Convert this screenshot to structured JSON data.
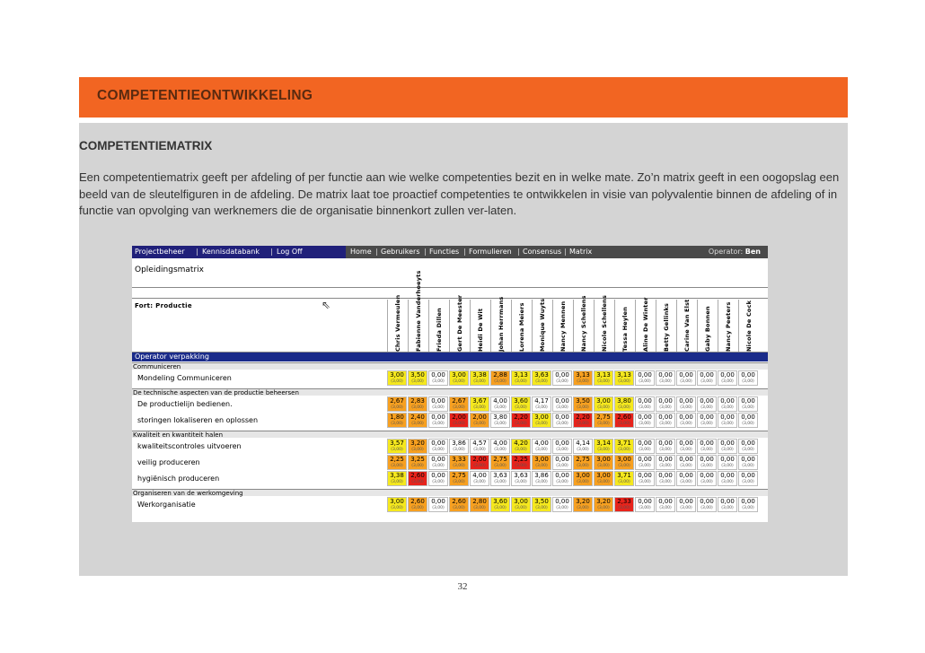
{
  "slide": {
    "banner_title": "COMPETENTIEONTWIKKELING",
    "subtitle": "COMPETENTIEMATRIX",
    "paragraph": "Een competentiematrix geeft per afdeling of per functie aan wie welke competenties bezit en in welke mate. Zo’n matrix geeft in een oogopslag een beeld van de sleutelfiguren in de afdeling. De matrix laat toe proactief competenties te ontwikkelen in visie van polyvalentie binnen de afdeling of in functie van opvolging van werknemers die de organisatie binnenkort zullen ver-laten.",
    "page_number": "32",
    "colors": {
      "banner": "#f26522",
      "panel": "#d4d4d4"
    }
  },
  "app": {
    "nav_left": [
      "Projectbeheer",
      "Kennisdatabank",
      "Log Off"
    ],
    "nav_right": [
      "Home",
      "Gebruikers",
      "Functies",
      "Formulieren",
      "Consensus",
      "Matrix"
    ],
    "operator_label": "Operator:",
    "operator_name": "Ben",
    "page_title": "Opleidingsmatrix",
    "fort_label": "Fort: Productie",
    "section_title": "Operator verpakking",
    "people": [
      "Chris Vermeulen",
      "Fabienne Vanderhoeyts",
      "Frieda Dillen",
      "Gert De Meester",
      "Heidi De Wit",
      "Johan Herrmans",
      "Lorena Meiers",
      "Monique Wuyts",
      "Nancy Mennen",
      "Nancy Schellens",
      "Nicole Schellens",
      "Tessa Heylen",
      "Aline De Winter",
      "Betty Gellinks",
      "Carine Van Elst",
      "Gaby Bonnen",
      "Nancy Peeters",
      "Nicole De Cock"
    ],
    "colors": {
      "nav_left_bg": "#20207a",
      "nav_bg": "#4a4a4a",
      "section_bg": "#1a2b8a",
      "yellow": "#f5e81e",
      "orange": "#f7a020",
      "red": "#e8231b",
      "empty": "#ffffff"
    },
    "groups": [
      {
        "title": "Communiceren",
        "rows": [
          {
            "label": "Mondeling Communiceren",
            "values": [
              "3,00",
              "3,50",
              "0,00",
              "3,00",
              "3,38",
              "2,88",
              "3,13",
              "3,63",
              "0,00",
              "3,13",
              "3,13",
              "3,13",
              "0,00",
              "0,00",
              "0,00",
              "0,00",
              "0,00",
              "0,00"
            ],
            "colors": [
              "y",
              "y",
              "n",
              "y",
              "y",
              "o",
              "y",
              "y",
              "n",
              "o",
              "y",
              "y",
              "n",
              "n",
              "n",
              "n",
              "n",
              "n"
            ]
          }
        ]
      },
      {
        "title": "De technische aspecten van de productie beheersen",
        "rows": [
          {
            "label": "De productielijn bedienen.",
            "values": [
              "2,67",
              "2,83",
              "0,00",
              "2,67",
              "3,67",
              "4,00",
              "3,60",
              "4,17",
              "0,00",
              "3,50",
              "3,00",
              "3,80",
              "0,00",
              "0,00",
              "0,00",
              "0,00",
              "0,00",
              "0,00"
            ],
            "colors": [
              "o",
              "o",
              "n",
              "o",
              "y",
              "n",
              "y",
              "n",
              "n",
              "o",
              "y",
              "y",
              "n",
              "n",
              "n",
              "n",
              "n",
              "n"
            ]
          },
          {
            "label": "storingen lokaliseren en oplossen",
            "values": [
              "1,80",
              "2,40",
              "0,00",
              "2,00",
              "2,00",
              "3,80",
              "2,20",
              "3,00",
              "0,00",
              "2,20",
              "2,75",
              "2,60",
              "0,00",
              "0,00",
              "0,00",
              "0,00",
              "0,00",
              "0,00"
            ],
            "colors": [
              "o",
              "o",
              "n",
              "r",
              "o",
              "n",
              "r",
              "y",
              "n",
              "r",
              "o",
              "r",
              "n",
              "n",
              "n",
              "n",
              "n",
              "n"
            ]
          }
        ]
      },
      {
        "title": "Kwaliteit en kwantiteit halen",
        "rows": [
          {
            "label": "kwaliteitscontroles uitvoeren",
            "values": [
              "3,57",
              "3,20",
              "0,00",
              "3,86",
              "4,57",
              "4,00",
              "4,20",
              "4,00",
              "0,00",
              "4,14",
              "3,14",
              "3,71",
              "0,00",
              "0,00",
              "0,00",
              "0,00",
              "0,00",
              "0,00"
            ],
            "colors": [
              "y",
              "o",
              "n",
              "n",
              "n",
              "n",
              "y",
              "n",
              "n",
              "n",
              "y",
              "y",
              "n",
              "n",
              "n",
              "n",
              "n",
              "n"
            ]
          },
          {
            "label": "veilig produceren",
            "values": [
              "2,25",
              "3,25",
              "0,00",
              "3,33",
              "2,00",
              "2,75",
              "2,25",
              "3,00",
              "0,00",
              "2,75",
              "3,00",
              "3,00",
              "0,00",
              "0,00",
              "0,00",
              "0,00",
              "0,00",
              "0,00"
            ],
            "colors": [
              "o",
              "o",
              "n",
              "o",
              "r",
              "o",
              "r",
              "o",
              "n",
              "o",
              "o",
              "o",
              "n",
              "n",
              "n",
              "n",
              "n",
              "n"
            ]
          },
          {
            "label": "hygiënisch produceren",
            "values": [
              "3,38",
              "2,60",
              "0,00",
              "2,75",
              "4,00",
              "3,63",
              "3,63",
              "3,86",
              "0,00",
              "3,00",
              "3,00",
              "3,71",
              "0,00",
              "0,00",
              "0,00",
              "0,00",
              "0,00",
              "0,00"
            ],
            "colors": [
              "y",
              "r",
              "n",
              "o",
              "n",
              "n",
              "n",
              "n",
              "n",
              "o",
              "o",
              "y",
              "n",
              "n",
              "n",
              "n",
              "n",
              "n"
            ]
          }
        ]
      },
      {
        "title": "Organiseren van de werkomgeving",
        "rows": [
          {
            "label": "Werkorganisatie",
            "values": [
              "3,00",
              "2,60",
              "0,00",
              "2,60",
              "2,80",
              "3,60",
              "3,00",
              "3,50",
              "0,00",
              "3,20",
              "3,20",
              "2,33",
              "0,00",
              "0,00",
              "0,00",
              "0,00",
              "0,00",
              "0,00"
            ],
            "colors": [
              "y",
              "o",
              "n",
              "o",
              "o",
              "y",
              "y",
              "y",
              "n",
              "o",
              "o",
              "r",
              "n",
              "n",
              "n",
              "n",
              "n",
              "n"
            ]
          }
        ]
      }
    ],
    "subscore_text": "(3,00)"
  }
}
